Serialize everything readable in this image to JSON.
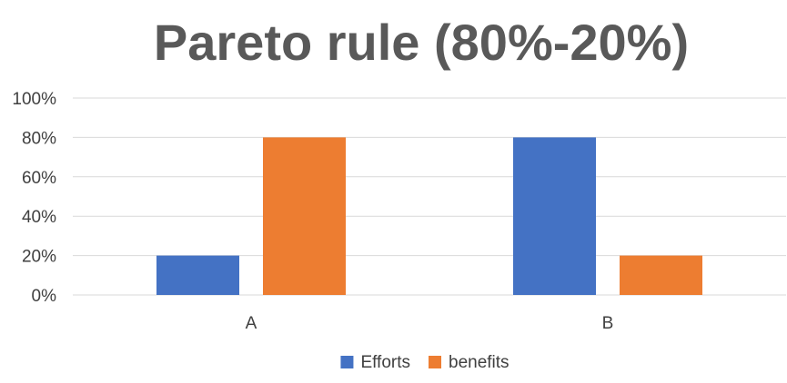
{
  "chart_data": {
    "type": "bar",
    "title": "Pareto rule (80%-20%)",
    "categories": [
      "A",
      "B"
    ],
    "series": [
      {
        "name": "Efforts",
        "values": [
          20,
          80
        ],
        "color": "#4472C4"
      },
      {
        "name": "benefits",
        "values": [
          80,
          20
        ],
        "color": "#ED7D31"
      }
    ],
    "ylim": [
      0,
      100
    ],
    "yticks": [
      0,
      20,
      40,
      60,
      80,
      100
    ],
    "ytick_labels": [
      "0%",
      "20%",
      "40%",
      "60%",
      "80%",
      "100%"
    ],
    "xlabel": "",
    "ylabel": "",
    "grid": true,
    "legend": "bottom"
  }
}
